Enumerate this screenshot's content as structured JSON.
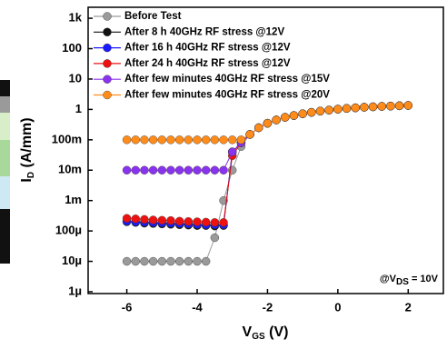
{
  "chart_data": {
    "type": "line",
    "x_label": {
      "main": "V",
      "sub": "GS",
      "rest": " (V)"
    },
    "y_label": {
      "main": "I",
      "sub": "D",
      "rest": " (A/mm)"
    },
    "annotation": {
      "main": "@V",
      "sub": "DS",
      "rest": " = 10V"
    },
    "log_y": true,
    "legend": "upper left",
    "xlim": [
      -7.1,
      3
    ],
    "ylim": [
      8.7e-07,
      2300
    ],
    "xticks": [
      -6,
      -4,
      -2,
      0,
      2
    ],
    "yticks": [
      {
        "value": 1000,
        "label": "1k"
      },
      100,
      10,
      1,
      {
        "value": 0.1,
        "label": "100m"
      },
      {
        "value": 0.01,
        "label": "10m"
      },
      {
        "value": 0.001,
        "label": "1m"
      },
      {
        "value": 0.0001,
        "label": "100µ"
      },
      {
        "value": 1e-05,
        "label": "10µ"
      },
      {
        "value": 1e-06,
        "label": "1µ"
      }
    ],
    "x": [
      -6,
      -5.75,
      -5.5,
      -5.25,
      -5,
      -4.75,
      -4.5,
      -4.25,
      -4,
      -3.75,
      -3.5,
      -3.25,
      -3,
      -2.75,
      -2.5,
      -2.25,
      -2,
      -1.75,
      -1.5,
      -1.25,
      -1,
      -0.75,
      -0.5,
      -0.25,
      0,
      0.25,
      0.5,
      0.75,
      1,
      1.25,
      1.5,
      1.75,
      2
    ],
    "series": [
      {
        "name": "Before Test",
        "color": "#9a9a9a",
        "values": [
          1e-05,
          1e-05,
          1e-05,
          1e-05,
          1e-05,
          1e-05,
          1e-05,
          1e-05,
          1e-05,
          1e-05,
          6e-05,
          0.001,
          0.01,
          0.06,
          0.15,
          0.25,
          0.35,
          0.45,
          0.55,
          0.63,
          0.72,
          0.8,
          0.88,
          0.95,
          1.02,
          1.08,
          1.13,
          1.18,
          1.22,
          1.26,
          1.29,
          1.32,
          1.35
        ]
      },
      {
        "name": "After 8 h 40GHz RF stress @12V",
        "color": "#111111",
        "values": [
          0.0002,
          0.00019,
          0.00018,
          0.000175,
          0.00017,
          0.000165,
          0.00016,
          0.000155,
          0.00015,
          0.00015,
          0.000145,
          0.00015,
          0.04,
          0.08,
          0.15,
          0.25,
          0.35,
          0.45,
          0.55,
          0.63,
          0.72,
          0.8,
          0.88,
          0.95,
          1.02,
          1.08,
          1.13,
          1.18,
          1.22,
          1.26,
          1.29,
          1.32,
          1.35
        ]
      },
      {
        "name": "After 16 h 40GHz RF stress @12V",
        "color": "#1a1aff",
        "values": [
          0.00021,
          0.0002,
          0.000195,
          0.00019,
          0.000185,
          0.00018,
          0.000175,
          0.00017,
          0.000165,
          0.00016,
          0.00016,
          0.00016,
          0.04,
          0.08,
          0.15,
          0.25,
          0.35,
          0.45,
          0.55,
          0.63,
          0.72,
          0.8,
          0.88,
          0.95,
          1.02,
          1.08,
          1.13,
          1.18,
          1.22,
          1.26,
          1.29,
          1.32,
          1.35
        ]
      },
      {
        "name": "After 24 h 40GHz RF stress @12V",
        "color": "#ee1111",
        "values": [
          0.00026,
          0.00025,
          0.00024,
          0.00023,
          0.000225,
          0.00022,
          0.00021,
          0.000205,
          0.0002,
          0.000195,
          0.00019,
          0.00019,
          0.03,
          0.08,
          0.15,
          0.25,
          0.35,
          0.45,
          0.55,
          0.63,
          0.72,
          0.8,
          0.88,
          0.95,
          1.02,
          1.08,
          1.13,
          1.18,
          1.22,
          1.26,
          1.29,
          1.32,
          1.35
        ]
      },
      {
        "name": "After few minutes 40GHz RF stress @15V",
        "color": "#8a33ee",
        "values": [
          0.01,
          0.01,
          0.01,
          0.01,
          0.01,
          0.01,
          0.01,
          0.01,
          0.01,
          0.01,
          0.01,
          0.01,
          0.04,
          0.08,
          0.15,
          0.25,
          0.35,
          0.45,
          0.55,
          0.63,
          0.72,
          0.8,
          0.88,
          0.95,
          1.02,
          1.08,
          1.13,
          1.18,
          1.22,
          1.26,
          1.29,
          1.32,
          1.35
        ]
      },
      {
        "name": "After few minutes 40GHz RF stress @20V",
        "color": "#ff8c1a",
        "values": [
          0.1,
          0.1,
          0.1,
          0.1,
          0.1,
          0.1,
          0.1,
          0.1,
          0.1,
          0.1,
          0.1,
          0.1,
          0.1,
          0.1,
          0.15,
          0.25,
          0.35,
          0.45,
          0.55,
          0.63,
          0.72,
          0.8,
          0.88,
          0.95,
          1.02,
          1.08,
          1.13,
          1.18,
          1.22,
          1.26,
          1.29,
          1.32,
          1.35
        ]
      }
    ]
  }
}
